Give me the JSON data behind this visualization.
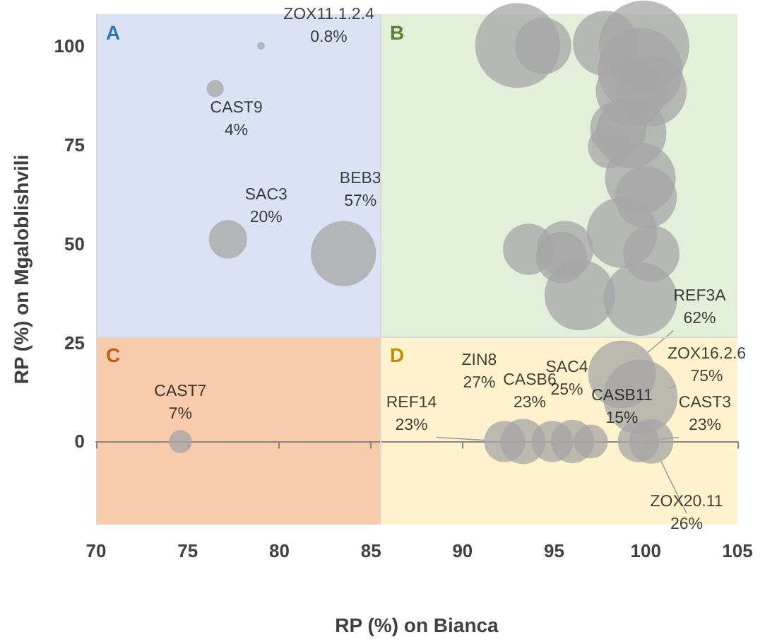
{
  "chart_data": {
    "type": "bubble",
    "xlabel": "RP (%) on Bianca",
    "ylabel": "RP (%) on Mgaloblishvili",
    "xlim": [
      70,
      105
    ],
    "xticks": [
      70,
      75,
      80,
      85,
      90,
      95,
      100,
      105
    ],
    "ylim": [
      -21,
      108
    ],
    "yticks": [
      0,
      25,
      50,
      75,
      100
    ],
    "annotations": [
      "A",
      "B",
      "C",
      "D"
    ],
    "ref_lines": [
      {
        "axis": "x",
        "value": 85.5,
        "color": "#d9d9d9"
      },
      {
        "axis": "y",
        "value": 26.5,
        "color": "#d9d9d9"
      }
    ],
    "series": [
      {
        "color": "#a6a6a6",
        "x": [
          79,
          76.5,
          77.2,
          83.5,
          74.6,
          92.3,
          93.3,
          94.9,
          96.0,
          97.0,
          99.6,
          100.3,
          98.7,
          99.7,
          93.0,
          94.4,
          97.8,
          99.9,
          99.7,
          99.2,
          100.3,
          98.5,
          99.2,
          98.0,
          99.7,
          100.0,
          93.6,
          95.6,
          95.4,
          98.7,
          100.3,
          96.4,
          99.7
        ],
        "values": [
          100,
          89.2,
          51.1,
          47.5,
          0,
          0,
          0,
          0,
          0,
          0,
          0,
          0,
          17,
          11.3,
          100.1,
          100,
          100.6,
          100,
          93.8,
          88.6,
          88.6,
          79,
          78,
          74.4,
          66.5,
          61.7,
          48.6,
          48.6,
          46.5,
          52.8,
          47.5,
          37,
          36
        ],
        "sizes": [
          0.007,
          0.036,
          0.18,
          0.52,
          0.064,
          0.21,
          0.25,
          0.21,
          0.23,
          0.14,
          0.21,
          0.24,
          0.56,
          0.68,
          0.88,
          0.39,
          0.52,
          1,
          0.88,
          0.61,
          0.61,
          0.39,
          0.61,
          0.22,
          0.61,
          0.47,
          0.32,
          0.39,
          0.32,
          0.61,
          0.39,
          0.61,
          0.66
        ],
        "value_labels": [
          "ZOX11.1.2.4\n0.8%",
          "CAST9\n4%",
          "SAC3\n20%",
          "BEB3\n57%",
          "CAST7\n7%",
          "REF14\n23%",
          "ZIN8\n27%",
          "CASB6\n23%",
          "SAC4\n25%",
          "CASB11\n15%",
          "CAST3\n23%",
          "ZOX20.11\n26%",
          "REF3A\n62%",
          "ZOX16.2.6\n75%",
          null,
          null,
          null,
          null,
          null,
          null,
          null,
          null,
          null,
          null,
          null,
          null,
          null,
          null,
          null,
          null,
          null,
          null,
          null
        ]
      }
    ]
  }
}
